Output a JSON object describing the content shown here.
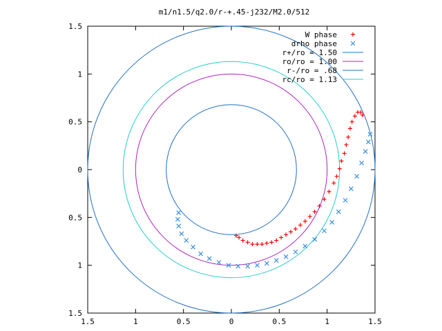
{
  "chart_data": {
    "type": "scatter",
    "title": "m1/n1.5/q2.0/r-+.45-j232/M2.0/512",
    "xlim": [
      -1.5,
      1.5
    ],
    "ylim": [
      -1.5,
      1.5
    ],
    "x_tick_values": [
      -1.5,
      -1,
      -0.5,
      0,
      0.5,
      1,
      1.5
    ],
    "y_tick_values": [
      -1.5,
      -1,
      -0.5,
      0,
      0.5,
      1,
      1.5
    ],
    "x_tick_labels": [
      "1.5",
      "1",
      "0.5",
      "0",
      "0.5",
      "1",
      "1.5"
    ],
    "y_tick_labels": [
      "1.5",
      "1",
      "0.5",
      "0",
      "0.5",
      "1",
      "1.5"
    ],
    "grid": false,
    "legend_position": "top-right",
    "circles": [
      {
        "label": "r+/ro = 1.50",
        "radius": 1.5,
        "color": "#1f6fc4"
      },
      {
        "label": "ro/ro = 1.00",
        "radius": 1.0,
        "color": "#aa22bb"
      },
      {
        "label": "r-/ro = .68",
        "radius": 0.68,
        "color": "#1f6fc4"
      },
      {
        "label": "rc/ro = 1.13",
        "radius": 1.13,
        "color": "#22cccc"
      }
    ],
    "series": [
      {
        "name": "W phase",
        "marker": "+",
        "color": "#ff0000",
        "points": [
          [
            0.05,
            -0.69
          ],
          [
            0.08,
            -0.71
          ],
          [
            0.12,
            -0.74
          ],
          [
            0.17,
            -0.76
          ],
          [
            0.22,
            -0.78
          ],
          [
            0.27,
            -0.78
          ],
          [
            0.32,
            -0.78
          ],
          [
            0.37,
            -0.77
          ],
          [
            0.42,
            -0.76
          ],
          [
            0.47,
            -0.74
          ],
          [
            0.52,
            -0.71
          ],
          [
            0.57,
            -0.68
          ],
          [
            0.62,
            -0.65
          ],
          [
            0.67,
            -0.62
          ],
          [
            0.72,
            -0.58
          ],
          [
            0.77,
            -0.54
          ],
          [
            0.82,
            -0.49
          ],
          [
            0.87,
            -0.44
          ],
          [
            0.92,
            -0.38
          ],
          [
            0.97,
            -0.31
          ],
          [
            1.02,
            -0.23
          ],
          [
            1.07,
            -0.14
          ],
          [
            1.1,
            -0.07
          ],
          [
            1.13,
            0.01
          ],
          [
            1.15,
            0.09
          ],
          [
            1.18,
            0.17
          ],
          [
            1.2,
            0.26
          ],
          [
            1.22,
            0.34
          ],
          [
            1.24,
            0.43
          ],
          [
            1.26,
            0.5
          ],
          [
            1.29,
            0.56
          ],
          [
            1.32,
            0.6
          ],
          [
            1.35,
            0.6
          ],
          [
            1.37,
            0.57
          ]
        ]
      },
      {
        "name": "drho phase",
        "marker": "x",
        "color": "#3b8fe0",
        "points": [
          [
            -0.55,
            -0.45
          ],
          [
            -0.56,
            -0.52
          ],
          [
            -0.55,
            -0.59
          ],
          [
            -0.52,
            -0.67
          ],
          [
            -0.47,
            -0.74
          ],
          [
            -0.4,
            -0.81
          ],
          [
            -0.32,
            -0.88
          ],
          [
            -0.23,
            -0.93
          ],
          [
            -0.13,
            -0.97
          ],
          [
            -0.03,
            -1.0
          ],
          [
            0.07,
            -1.01
          ],
          [
            0.17,
            -1.01
          ],
          [
            0.27,
            -1.0
          ],
          [
            0.37,
            -0.98
          ],
          [
            0.47,
            -0.95
          ],
          [
            0.57,
            -0.91
          ],
          [
            0.67,
            -0.86
          ],
          [
            0.77,
            -0.8
          ],
          [
            0.87,
            -0.73
          ],
          [
            0.97,
            -0.64
          ],
          [
            1.05,
            -0.55
          ],
          [
            1.12,
            -0.44
          ],
          [
            1.19,
            -0.32
          ],
          [
            1.25,
            -0.2
          ],
          [
            1.31,
            -0.07
          ],
          [
            1.36,
            0.07
          ],
          [
            1.4,
            0.19
          ],
          [
            1.43,
            0.29
          ],
          [
            1.45,
            0.37
          ]
        ]
      }
    ]
  }
}
